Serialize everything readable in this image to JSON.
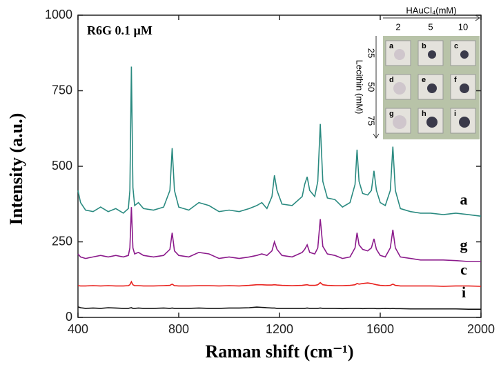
{
  "chart_data": {
    "type": "line",
    "annotation": "R6G 0.1 µM",
    "x_label": "Raman shift (cm⁻¹)",
    "y_label": "Intensity (a.u.)",
    "xlim": [
      400,
      2000
    ],
    "xticks": [
      400,
      800,
      1200,
      1600,
      2000
    ],
    "ylim": [
      0,
      1000
    ],
    "yticks": [
      0,
      250,
      500,
      750,
      1000
    ],
    "x": [
      400,
      410,
      430,
      460,
      490,
      520,
      550,
      580,
      600,
      606,
      612,
      618,
      625,
      640,
      660,
      700,
      740,
      765,
      774,
      783,
      800,
      840,
      880,
      920,
      960,
      1000,
      1040,
      1080,
      1110,
      1130,
      1150,
      1170,
      1180,
      1190,
      1210,
      1250,
      1290,
      1300,
      1310,
      1320,
      1340,
      1352,
      1362,
      1372,
      1390,
      1420,
      1450,
      1480,
      1500,
      1508,
      1516,
      1530,
      1550,
      1565,
      1575,
      1585,
      1600,
      1620,
      1640,
      1650,
      1660,
      1680,
      1720,
      1760,
      1800,
      1850,
      1900,
      1950,
      2000
    ],
    "series": [
      {
        "name": "a",
        "color": "#2a8a80",
        "values": [
          420,
          380,
          355,
          350,
          365,
          350,
          360,
          345,
          360,
          420,
          830,
          430,
          370,
          380,
          360,
          355,
          365,
          420,
          560,
          420,
          365,
          355,
          380,
          370,
          350,
          355,
          350,
          360,
          370,
          380,
          360,
          400,
          470,
          420,
          375,
          370,
          400,
          440,
          465,
          420,
          400,
          450,
          640,
          450,
          395,
          390,
          365,
          380,
          440,
          555,
          450,
          410,
          405,
          420,
          485,
          420,
          380,
          370,
          420,
          565,
          420,
          360,
          350,
          345,
          345,
          340,
          345,
          340,
          335
        ]
      },
      {
        "name": "g",
        "color": "#8b1a8b",
        "values": [
          210,
          200,
          195,
          200,
          205,
          200,
          205,
          200,
          205,
          230,
          365,
          230,
          210,
          215,
          205,
          200,
          205,
          225,
          280,
          220,
          205,
          200,
          215,
          210,
          195,
          200,
          195,
          200,
          205,
          210,
          205,
          220,
          250,
          225,
          205,
          200,
          215,
          225,
          240,
          215,
          210,
          230,
          325,
          235,
          210,
          205,
          195,
          200,
          230,
          280,
          240,
          225,
          220,
          230,
          260,
          225,
          205,
          200,
          230,
          290,
          230,
          200,
          195,
          190,
          190,
          190,
          188,
          185,
          185
        ]
      },
      {
        "name": "c",
        "color": "#e8201c",
        "values": [
          105,
          104,
          104,
          105,
          104,
          105,
          104,
          104,
          105,
          108,
          118,
          108,
          105,
          105,
          104,
          104,
          105,
          106,
          110,
          105,
          104,
          104,
          105,
          105,
          104,
          105,
          104,
          106,
          108,
          108,
          107,
          107,
          108,
          107,
          106,
          105,
          106,
          107,
          108,
          106,
          106,
          108,
          115,
          108,
          106,
          105,
          105,
          106,
          108,
          112,
          110,
          112,
          114,
          112,
          110,
          108,
          106,
          105,
          106,
          110,
          106,
          104,
          104,
          104,
          104,
          103,
          104,
          104,
          103
        ]
      },
      {
        "name": "i",
        "color": "#111111",
        "values": [
          35,
          32,
          30,
          31,
          30,
          32,
          31,
          30,
          30,
          31,
          32,
          30,
          30,
          31,
          30,
          30,
          31,
          30,
          31,
          30,
          30,
          30,
          31,
          30,
          30,
          31,
          31,
          32,
          34,
          33,
          32,
          31,
          31,
          30,
          30,
          30,
          30,
          30,
          31,
          30,
          30,
          30,
          31,
          30,
          30,
          30,
          29,
          30,
          30,
          30,
          30,
          29,
          30,
          30,
          30,
          29,
          29,
          30,
          29,
          30,
          29,
          29,
          28,
          28,
          28,
          28,
          28,
          27,
          27
        ]
      }
    ],
    "inset": {
      "column_title": "HAuCl₄(mM)",
      "columns": [
        "2",
        "5",
        "10"
      ],
      "row_title": "Lecithin (mM)",
      "rows": [
        "25",
        "50",
        "75"
      ],
      "cells": [
        "a",
        "b",
        "c",
        "d",
        "e",
        "f",
        "g",
        "h",
        "i"
      ]
    }
  }
}
